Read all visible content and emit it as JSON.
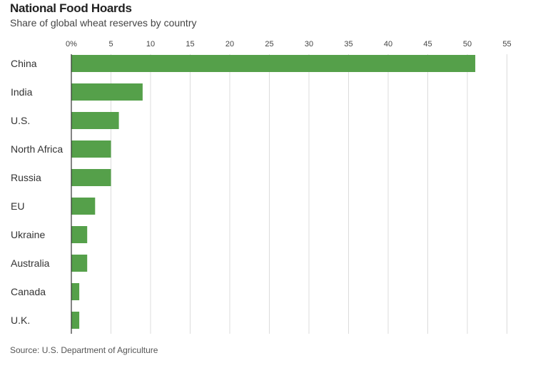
{
  "header": {
    "title": "National Food Hoards",
    "subtitle": "Share of global wheat reserves by country"
  },
  "footer": {
    "source": "Source: U.S. Department of Agriculture"
  },
  "colors": {
    "bar": "#55a04a",
    "grid": "#dcdcdc",
    "axis": "#333333"
  },
  "chart_data": {
    "type": "bar",
    "orientation": "horizontal",
    "title": "National Food Hoards",
    "subtitle": "Share of global wheat reserves by country",
    "xlim": [
      0,
      55
    ],
    "x_ticks": [
      0,
      5,
      10,
      15,
      20,
      25,
      30,
      35,
      40,
      45,
      50,
      55
    ],
    "x_tick_labels": [
      "0%",
      "5",
      "10",
      "15",
      "20",
      "25",
      "30",
      "35",
      "40",
      "45",
      "50",
      "55"
    ],
    "categories": [
      "China",
      "India",
      "U.S.",
      "North Africa",
      "Russia",
      "EU",
      "Ukraine",
      "Australia",
      "Canada",
      "U.K."
    ],
    "values": [
      51,
      9,
      6,
      5,
      5,
      3,
      2,
      2,
      1,
      1
    ],
    "grid": true,
    "legend": "none"
  }
}
